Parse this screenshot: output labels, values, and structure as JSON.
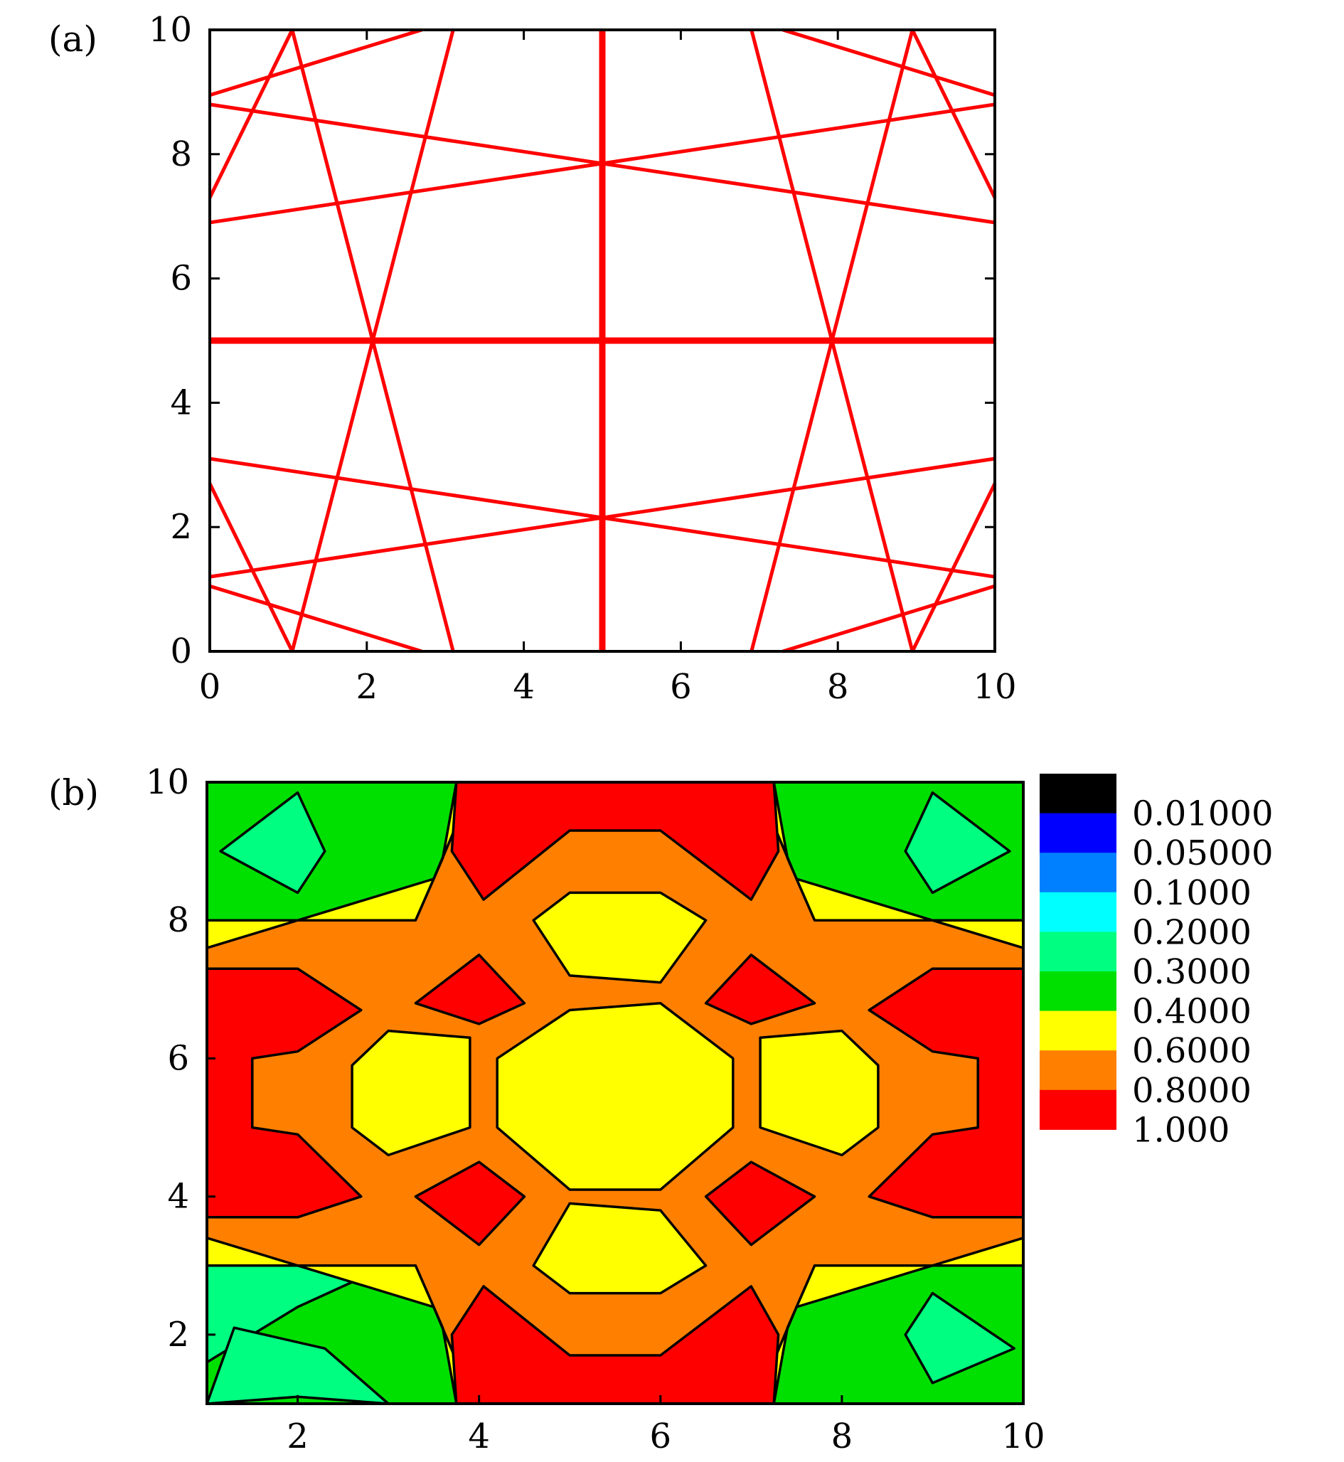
{
  "chart_data": [
    {
      "type": "line",
      "panel_label": "(a)",
      "xlim": [
        0,
        10
      ],
      "ylim": [
        0,
        10
      ],
      "x_ticks": [
        "0",
        "2",
        "4",
        "6",
        "8",
        "10"
      ],
      "y_ticks": [
        "0",
        "2",
        "4",
        "6",
        "8",
        "10"
      ],
      "grid": false,
      "line_color": "#ff0000",
      "series": [
        {
          "values": [
            [
              5,
              0
            ],
            [
              5,
              10
            ]
          ]
        },
        {
          "values": [
            [
              0,
              5
            ],
            [
              10,
              5
            ]
          ]
        },
        {
          "values": [
            [
              0,
              8.8
            ],
            [
              10,
              6.9
            ]
          ]
        },
        {
          "values": [
            [
              0,
              6.9
            ],
            [
              10,
              8.8
            ]
          ]
        },
        {
          "values": [
            [
              0,
              3.1
            ],
            [
              10,
              1.2
            ]
          ]
        },
        {
          "values": [
            [
              0,
              1.2
            ],
            [
              10,
              3.1
            ]
          ]
        },
        {
          "values": [
            [
              1.05,
              10
            ],
            [
              3.1,
              0
            ]
          ]
        },
        {
          "values": [
            [
              3.1,
              10
            ],
            [
              1.05,
              0
            ]
          ]
        },
        {
          "values": [
            [
              6.9,
              10
            ],
            [
              8.95,
              0
            ]
          ]
        },
        {
          "values": [
            [
              8.95,
              10
            ],
            [
              6.9,
              0
            ]
          ]
        },
        {
          "values": [
            [
              0,
              7.3
            ],
            [
              1.05,
              10
            ]
          ]
        },
        {
          "values": [
            [
              0,
              8.95
            ],
            [
              2.7,
              10
            ]
          ]
        },
        {
          "values": [
            [
              0,
              2.7
            ],
            [
              1.05,
              0
            ]
          ]
        },
        {
          "values": [
            [
              0,
              1.05
            ],
            [
              2.7,
              0
            ]
          ]
        },
        {
          "values": [
            [
              10,
              7.3
            ],
            [
              8.95,
              10
            ]
          ]
        },
        {
          "values": [
            [
              10,
              8.95
            ],
            [
              7.3,
              10
            ]
          ]
        },
        {
          "values": [
            [
              10,
              2.7
            ],
            [
              8.95,
              0
            ]
          ]
        },
        {
          "values": [
            [
              10,
              1.05
            ],
            [
              7.3,
              0
            ]
          ]
        }
      ]
    },
    {
      "type": "heatmap",
      "panel_label": "(b)",
      "xlim": [
        1,
        10
      ],
      "ylim": [
        1,
        10
      ],
      "x_ticks": [
        "2",
        "4",
        "6",
        "8",
        "10"
      ],
      "y_ticks": [
        "2",
        "4",
        "6",
        "8",
        "10"
      ],
      "legend_position": "right",
      "colorbar": [
        {
          "label": "",
          "color": "#000000"
        },
        {
          "label": "0.01000",
          "color": "#0000ff"
        },
        {
          "label": "0.05000",
          "color": "#0080ff"
        },
        {
          "label": "0.1000",
          "color": "#00ffff"
        },
        {
          "label": "0.2000",
          "color": "#00ff80"
        },
        {
          "label": "0.3000",
          "color": "#00e000"
        },
        {
          "label": "0.4000",
          "color": "#ffff00"
        },
        {
          "label": "0.6000",
          "color": "#ff8000"
        },
        {
          "label": "0.8000",
          "color": "#ff0000"
        },
        {
          "label": "1.000",
          "color": null
        }
      ],
      "background_level_color": "#ff8000",
      "regions": [
        {
          "level": "0.3000",
          "color": "#00e000",
          "points": [
            [
              1,
              10
            ],
            [
              3.95,
              10
            ],
            [
              3.5,
              8.6
            ],
            [
              3.3,
              8
            ],
            [
              1,
              8
            ]
          ]
        },
        {
          "level": "0.3000",
          "color": "#00e000",
          "points": [
            [
              10,
              10
            ],
            [
              7.05,
              10
            ],
            [
              7.5,
              8.6
            ],
            [
              7.7,
              8
            ],
            [
              10,
              8
            ]
          ]
        },
        {
          "level": "0.3000",
          "color": "#00e000",
          "points": [
            [
              1,
              1
            ],
            [
              3.95,
              1
            ],
            [
              3.5,
              2.4
            ],
            [
              3.3,
              3
            ],
            [
              1,
              3
            ]
          ]
        },
        {
          "level": "0.3000",
          "color": "#00e000",
          "points": [
            [
              10,
              1
            ],
            [
              7.05,
              1
            ],
            [
              7.5,
              2.4
            ],
            [
              7.7,
              3
            ],
            [
              10,
              3
            ]
          ]
        },
        {
          "level": "0.2000",
          "color": "#00ff80",
          "points": [
            [
              1.15,
              9
            ],
            [
              2,
              9.85
            ],
            [
              2.3,
              9
            ],
            [
              2,
              8.4
            ]
          ]
        },
        {
          "level": "0.2000",
          "color": "#00ff80",
          "points": [
            [
              9.85,
              9
            ],
            [
              9,
              9.85
            ],
            [
              8.7,
              9
            ],
            [
              9,
              8.4
            ]
          ]
        },
        {
          "level": "0.2000",
          "color": "#00ff80",
          "points": [
            [
              1,
              3
            ],
            [
              2,
              3
            ],
            [
              3,
              3
            ],
            [
              2,
              2.4
            ],
            [
              1,
              1.6
            ],
            [
              1,
              1
            ]
          ]
        },
        {
          "level": "0.2000",
          "color": "#00ff80",
          "points": [
            [
              1,
              1
            ],
            [
              2,
              1.1
            ],
            [
              3,
              1
            ],
            [
              2.3,
              1.8
            ],
            [
              1.3,
              2.1
            ]
          ]
        },
        {
          "level": "0.2000",
          "color": "#00ff80",
          "points": [
            [
              8.7,
              2
            ],
            [
              9,
              1.3
            ],
            [
              9.9,
              1.8
            ],
            [
              9,
              2.6
            ]
          ]
        },
        {
          "level": "0.4000",
          "color": "#ffff00",
          "points": [
            [
              1,
              8
            ],
            [
              3.3,
              8
            ],
            [
              3.6,
              8.9
            ],
            [
              3.75,
              10
            ],
            [
              3.95,
              10
            ],
            [
              3.5,
              8.6
            ],
            [
              1,
              7.6
            ]
          ]
        },
        {
          "level": "0.4000",
          "color": "#ffff00",
          "points": [
            [
              10,
              8
            ],
            [
              7.7,
              8
            ],
            [
              7.4,
              8.9
            ],
            [
              7.25,
              10
            ],
            [
              7.05,
              10
            ],
            [
              7.5,
              8.6
            ],
            [
              10,
              7.6
            ]
          ]
        },
        {
          "level": "0.4000",
          "color": "#ffff00",
          "points": [
            [
              1,
              3
            ],
            [
              3.3,
              3
            ],
            [
              3.6,
              2.1
            ],
            [
              3.75,
              1
            ],
            [
              3.95,
              1
            ],
            [
              3.5,
              2.4
            ],
            [
              1,
              3.4
            ]
          ]
        },
        {
          "level": "0.4000",
          "color": "#ffff00",
          "points": [
            [
              10,
              3
            ],
            [
              7.7,
              3
            ],
            [
              7.4,
              2.1
            ],
            [
              7.25,
              1
            ],
            [
              7.05,
              1
            ],
            [
              7.5,
              2.4
            ],
            [
              10,
              3.4
            ]
          ]
        },
        {
          "level": "0.8000",
          "color": "#ff0000",
          "points": [
            [
              3.75,
              10
            ],
            [
              7.25,
              10
            ],
            [
              7.3,
              9
            ],
            [
              7.0,
              8.3
            ],
            [
              6.0,
              9.3
            ],
            [
              5.0,
              9.3
            ],
            [
              4.05,
              8.3
            ],
            [
              3.7,
              9
            ]
          ]
        },
        {
          "level": "0.8000",
          "color": "#ff0000",
          "points": [
            [
              3.75,
              1
            ],
            [
              7.25,
              1
            ],
            [
              7.3,
              2
            ],
            [
              7.0,
              2.7
            ],
            [
              6.0,
              1.7
            ],
            [
              5.0,
              1.7
            ],
            [
              4.05,
              2.7
            ],
            [
              3.7,
              2
            ]
          ]
        },
        {
          "level": "0.8000",
          "color": "#ff0000",
          "points": [
            [
              1,
              7.3
            ],
            [
              2.0,
              7.3
            ],
            [
              2.7,
              6.7
            ],
            [
              2.0,
              6.1
            ],
            [
              1.5,
              6.0
            ],
            [
              1.5,
              5.0
            ],
            [
              2.0,
              4.9
            ],
            [
              2.7,
              4.0
            ],
            [
              2.0,
              3.7
            ],
            [
              1,
              3.7
            ]
          ]
        },
        {
          "level": "0.8000",
          "color": "#ff0000",
          "points": [
            [
              10,
              7.3
            ],
            [
              9.0,
              7.3
            ],
            [
              8.3,
              6.7
            ],
            [
              9.0,
              6.1
            ],
            [
              9.5,
              6.0
            ],
            [
              9.5,
              5.0
            ],
            [
              9.0,
              4.9
            ],
            [
              8.3,
              4.0
            ],
            [
              9.0,
              3.7
            ],
            [
              10,
              3.7
            ]
          ]
        },
        {
          "level": "0.8000",
          "color": "#ff0000",
          "points": [
            [
              3.3,
              6.8
            ],
            [
              4.0,
              7.5
            ],
            [
              4.5,
              6.8
            ],
            [
              4.0,
              6.5
            ]
          ]
        },
        {
          "level": "0.8000",
          "color": "#ff0000",
          "points": [
            [
              7.7,
              6.8
            ],
            [
              7.0,
              7.5
            ],
            [
              6.5,
              6.8
            ],
            [
              7.0,
              6.5
            ]
          ]
        },
        {
          "level": "0.8000",
          "color": "#ff0000",
          "points": [
            [
              3.3,
              4.0
            ],
            [
              4.0,
              4.5
            ],
            [
              4.5,
              4.0
            ],
            [
              4.0,
              3.3
            ]
          ]
        },
        {
          "level": "0.8000",
          "color": "#ff0000",
          "points": [
            [
              7.7,
              4.0
            ],
            [
              7.0,
              4.5
            ],
            [
              6.5,
              4.0
            ],
            [
              7.0,
              3.3
            ]
          ]
        },
        {
          "level": "0.6000",
          "color": "#ffff00",
          "points": [
            [
              4.6,
              8.0
            ],
            [
              5.0,
              8.4
            ],
            [
              6.0,
              8.4
            ],
            [
              6.5,
              8.0
            ],
            [
              6.0,
              7.1
            ],
            [
              5.0,
              7.2
            ]
          ]
        },
        {
          "level": "0.6000",
          "color": "#ffff00",
          "points": [
            [
              4.6,
              3.0
            ],
            [
              5.0,
              2.6
            ],
            [
              6.0,
              2.6
            ],
            [
              6.5,
              3.0
            ],
            [
              6.0,
              3.8
            ],
            [
              5.0,
              3.9
            ]
          ]
        },
        {
          "level": "0.6000",
          "color": "#ffff00",
          "points": [
            [
              2.6,
              5.9
            ],
            [
              3.0,
              6.4
            ],
            [
              3.9,
              6.3
            ],
            [
              3.9,
              5.0
            ],
            [
              3.0,
              4.6
            ],
            [
              2.6,
              5.0
            ]
          ]
        },
        {
          "level": "0.6000",
          "color": "#ffff00",
          "points": [
            [
              8.4,
              5.9
            ],
            [
              8.0,
              6.4
            ],
            [
              7.1,
              6.3
            ],
            [
              7.1,
              5.0
            ],
            [
              8.0,
              4.6
            ],
            [
              8.4,
              5.0
            ]
          ]
        },
        {
          "level": "0.6000",
          "color": "#ffff00",
          "points": [
            [
              5.0,
              6.7
            ],
            [
              6.0,
              6.8
            ],
            [
              6.8,
              6.0
            ],
            [
              6.8,
              5.0
            ],
            [
              6.0,
              4.1
            ],
            [
              5.0,
              4.1
            ],
            [
              4.2,
              5.0
            ],
            [
              4.2,
              6.0
            ]
          ]
        }
      ]
    }
  ]
}
